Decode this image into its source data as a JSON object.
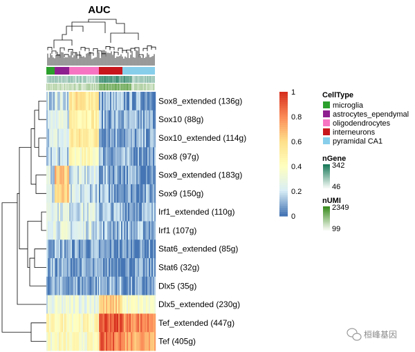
{
  "chart_data": {
    "type": "heatmap",
    "title": "AUC",
    "row_labels": [
      "Sox8_extended (136g)",
      "Sox10 (88g)",
      "Sox10_extended (114g)",
      "Sox8 (97g)",
      "Sox9_extended (183g)",
      "Sox9 (150g)",
      "Irf1_extended (110g)",
      "Irf1 (107g)",
      "Stat6_extended (85g)",
      "Stat6 (32g)",
      "Dlx5 (35g)",
      "Dlx5_extended (230g)",
      "Tef_extended (447g)",
      "Tef (405g)"
    ],
    "cell_groups": [
      "microglia",
      "astrocytes_ependymal",
      "oligodendrocytes",
      "interneurons",
      "pyramidal CA1"
    ],
    "approx_mean_auc": [
      [
        0.18,
        0.2,
        0.55,
        0.1,
        0.08
      ],
      [
        0.2,
        0.22,
        0.5,
        0.1,
        0.08
      ],
      [
        0.2,
        0.22,
        0.52,
        0.1,
        0.08
      ],
      [
        0.15,
        0.18,
        0.4,
        0.1,
        0.08
      ],
      [
        0.2,
        0.65,
        0.2,
        0.1,
        0.08
      ],
      [
        0.2,
        0.6,
        0.18,
        0.1,
        0.08
      ],
      [
        0.3,
        0.25,
        0.22,
        0.12,
        0.1
      ],
      [
        0.3,
        0.25,
        0.22,
        0.12,
        0.1
      ],
      [
        0.12,
        0.1,
        0.08,
        0.05,
        0.05
      ],
      [
        0.1,
        0.08,
        0.06,
        0.05,
        0.05
      ],
      [
        0.08,
        0.08,
        0.08,
        0.1,
        0.05
      ],
      [
        0.25,
        0.28,
        0.3,
        0.62,
        0.35
      ],
      [
        0.4,
        0.45,
        0.42,
        0.92,
        0.82
      ],
      [
        0.35,
        0.4,
        0.38,
        0.85,
        0.75
      ]
    ],
    "color_scale": {
      "label": "",
      "range": [
        0,
        1
      ],
      "ticks": [
        "1",
        "0.8",
        "0.6",
        "0.4",
        "0.2",
        "0"
      ],
      "stops": [
        "#d7301f",
        "#fc8d59",
        "#fee08b",
        "#ffffbf",
        "#d9eef6",
        "#4575b4"
      ]
    },
    "annotations": {
      "CellType": {
        "title": "CellType",
        "items": [
          {
            "label": "microglia",
            "color": "#2ca02c"
          },
          {
            "label": "astrocytes_ependymal",
            "color": "#8e1f8f"
          },
          {
            "label": "oligodendrocytes",
            "color": "#f774c2"
          },
          {
            "label": "interneurons",
            "color": "#c8161d"
          },
          {
            "label": "pyramidal CA1",
            "color": "#87ceeb"
          }
        ]
      },
      "nGene": {
        "title": "nGene",
        "max": "342",
        "min": "46",
        "max_color": "#1b7a5a",
        "min_color": "#eef6f1"
      },
      "nUMI": {
        "title": "nUMI",
        "max": "2349",
        "min": "99",
        "max_color": "#3a8c1f",
        "min_color": "#f1f6ec"
      }
    }
  },
  "watermark": {
    "text": "桓峰基因"
  }
}
